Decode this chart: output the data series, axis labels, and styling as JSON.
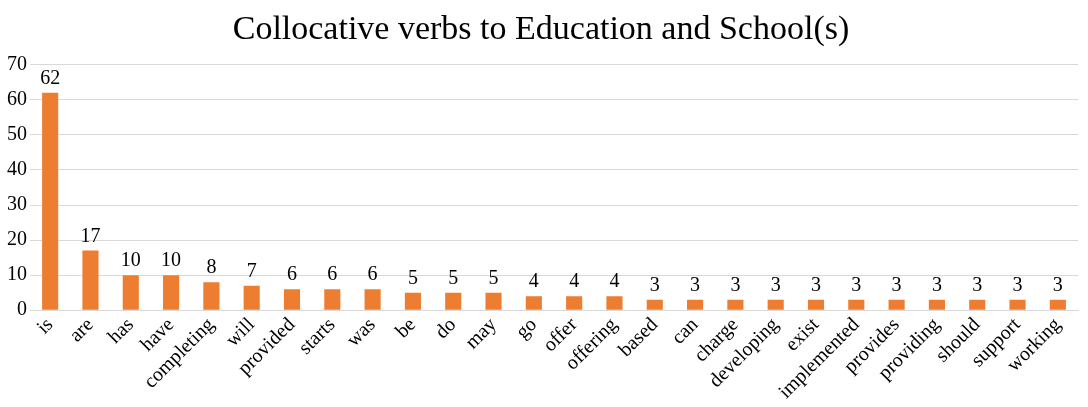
{
  "chart_data": {
    "type": "bar",
    "title": "Collocative verbs to Education and School(s)",
    "categories": [
      "is",
      "are",
      "has",
      "have",
      "completing",
      "will",
      "provided",
      "starts",
      "was",
      "be",
      "do",
      "may",
      "go",
      "offer",
      "offering",
      "based",
      "can",
      "charge",
      "developing",
      "exist",
      "implemented",
      "provides",
      "providing",
      "should",
      "support",
      "working"
    ],
    "values": [
      62,
      17,
      10,
      10,
      8,
      7,
      6,
      6,
      6,
      5,
      5,
      5,
      4,
      4,
      4,
      3,
      3,
      3,
      3,
      3,
      3,
      3,
      3,
      3,
      3,
      3
    ],
    "color": "#ed7d31",
    "ylim": [
      0,
      70
    ],
    "yticks": [
      0,
      10,
      20,
      30,
      40,
      50,
      60,
      70
    ],
    "grid": "y",
    "data_labels": true
  }
}
